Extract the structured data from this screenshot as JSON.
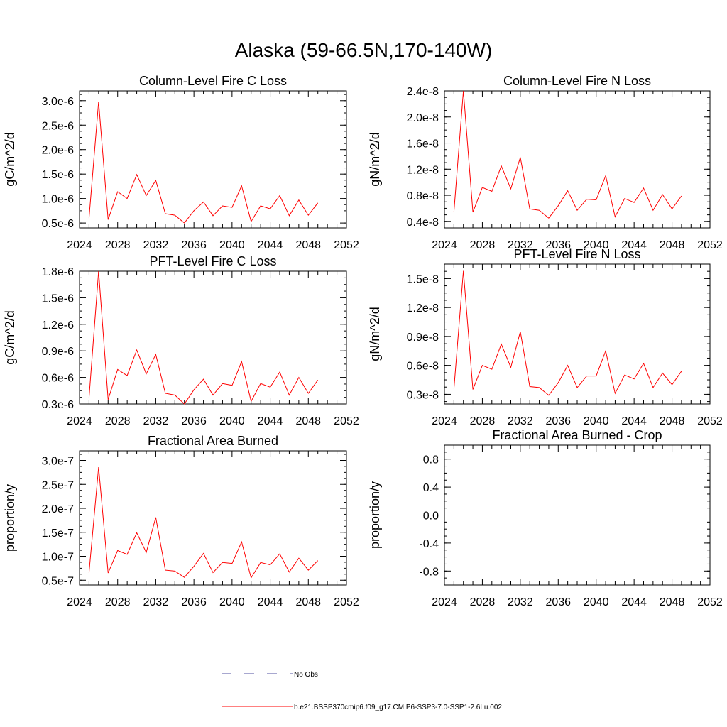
{
  "title": "Alaska (59-66.5N,170-140W)",
  "colors": {
    "series": "#ff0000",
    "obs": "#5050a0",
    "axis": "#000000"
  },
  "legend": {
    "obs_label": "No Obs",
    "model_label": "b.e21.BSSP370cmip6.f09_g17.CMIP6-SSP3-7.0-SSP1-2.6Lu.002"
  },
  "chart_data": [
    {
      "type": "line",
      "title": "Column-Level Fire C Loss",
      "ylabel": "gC/m^2/d",
      "xlim": [
        2024,
        2052
      ],
      "xticks": [
        "2024",
        "2028",
        "2032",
        "2036",
        "2040",
        "2044",
        "2048",
        "2052"
      ],
      "ylim": [
        4e-07,
        3.2e-06
      ],
      "yticks": [
        "0.5e-6",
        "1.0e-6",
        "1.5e-6",
        "2.0e-6",
        "2.5e-6",
        "3.0e-6"
      ],
      "ytick_values": [
        5e-07,
        1e-06,
        1.5e-06,
        2e-06,
        2.5e-06,
        3e-06
      ],
      "x": [
        2025,
        2026,
        2027,
        2028,
        2029,
        2030,
        2031,
        2032,
        2033,
        2034,
        2035,
        2036,
        2037,
        2038,
        2039,
        2040,
        2041,
        2042,
        2043,
        2044,
        2045,
        2046,
        2047,
        2048,
        2049
      ],
      "series": [
        {
          "values": [
            6e-07,
            2.98e-06,
            5.7e-07,
            1.14e-06,
            1e-06,
            1.49e-06,
            1.06e-06,
            1.37e-06,
            6.9e-07,
            6.6e-07,
            5e-07,
            7.5e-07,
            9.3e-07,
            6.5e-07,
            8.5e-07,
            8.2e-07,
            1.26e-06,
            5.3e-07,
            8.5e-07,
            7.9e-07,
            1.06e-06,
            6.5e-07,
            9.7e-07,
            6.6e-07,
            9.1e-07
          ]
        }
      ]
    },
    {
      "type": "line",
      "title": "Column-Level Fire N Loss",
      "ylabel": "gN/m^2/d",
      "xlim": [
        2024,
        2052
      ],
      "xticks": [
        "2024",
        "2028",
        "2032",
        "2036",
        "2040",
        "2044",
        "2048",
        "2052"
      ],
      "ylim": [
        3e-09,
        2.4e-08
      ],
      "yticks": [
        "0.4e-8",
        "0.8e-8",
        "1.2e-8",
        "1.6e-8",
        "2.0e-8",
        "2.4e-8"
      ],
      "ytick_values": [
        4e-09,
        8e-09,
        1.2e-08,
        1.6e-08,
        2e-08,
        2.4e-08
      ],
      "x": [
        2025,
        2026,
        2027,
        2028,
        2029,
        2030,
        2031,
        2032,
        2033,
        2034,
        2035,
        2036,
        2037,
        2038,
        2039,
        2040,
        2041,
        2042,
        2043,
        2044,
        2045,
        2046,
        2047,
        2048,
        2049
      ],
      "series": [
        {
          "values": [
            5.5e-09,
            2.4e-08,
            5.4e-09,
            9.2e-09,
            8.6e-09,
            1.25e-08,
            9e-09,
            1.38e-08,
            5.9e-09,
            5.7e-09,
            4.5e-09,
            6.4e-09,
            8.7e-09,
            5.7e-09,
            7.4e-09,
            7.3e-09,
            1.1e-08,
            4.7e-09,
            7.5e-09,
            6.9e-09,
            9.1e-09,
            5.7e-09,
            8.1e-09,
            5.9e-09,
            7.9e-09
          ]
        }
      ]
    },
    {
      "type": "line",
      "title": "PFT-Level Fire C Loss",
      "ylabel": "gC/m^2/d",
      "xlim": [
        2024,
        2052
      ],
      "xticks": [
        "2024",
        "2028",
        "2032",
        "2036",
        "2040",
        "2044",
        "2048",
        "2052"
      ],
      "ylim": [
        3e-07,
        1.8e-06
      ],
      "yticks": [
        "0.3e-6",
        "0.6e-6",
        "0.9e-6",
        "1.2e-6",
        "1.5e-6",
        "1.8e-6"
      ],
      "ytick_values": [
        3e-07,
        6e-07,
        9e-07,
        1.2e-06,
        1.5e-06,
        1.8e-06
      ],
      "x": [
        2025,
        2026,
        2027,
        2028,
        2029,
        2030,
        2031,
        2032,
        2033,
        2034,
        2035,
        2036,
        2037,
        2038,
        2039,
        2040,
        2041,
        2042,
        2043,
        2044,
        2045,
        2046,
        2047,
        2048,
        2049
      ],
      "series": [
        {
          "values": [
            3.7e-07,
            1.8e-06,
            3.5e-07,
            6.9e-07,
            6.2e-07,
            9.1e-07,
            6.4e-07,
            8.6e-07,
            4.2e-07,
            4e-07,
            3e-07,
            4.6e-07,
            5.8e-07,
            4e-07,
            5.3e-07,
            5.1e-07,
            7.8e-07,
            3.3e-07,
            5.3e-07,
            4.9e-07,
            6.6e-07,
            4e-07,
            6e-07,
            4.2e-07,
            5.7e-07
          ]
        }
      ]
    },
    {
      "type": "line",
      "title": "PFT-Level Fire N Loss",
      "ylabel": "gN/m^2/d",
      "xlim": [
        2024,
        2052
      ],
      "xticks": [
        "2024",
        "2028",
        "2032",
        "2036",
        "2040",
        "2044",
        "2048",
        "2052"
      ],
      "ylim": [
        2e-09,
        1.65e-08
      ],
      "yticks": [
        "0.3e-8",
        "0.6e-8",
        "0.9e-8",
        "1.2e-8",
        "1.5e-8"
      ],
      "ytick_values": [
        3e-09,
        6e-09,
        9e-09,
        1.2e-08,
        1.5e-08
      ],
      "x": [
        2025,
        2026,
        2027,
        2028,
        2029,
        2030,
        2031,
        2032,
        2033,
        2034,
        2035,
        2036,
        2037,
        2038,
        2039,
        2040,
        2041,
        2042,
        2043,
        2044,
        2045,
        2046,
        2047,
        2048,
        2049
      ],
      "series": [
        {
          "values": [
            3.6e-09,
            1.58e-08,
            3.5e-09,
            6e-09,
            5.6e-09,
            8.2e-09,
            5.8e-09,
            9.5e-09,
            3.8e-09,
            3.7e-09,
            2.9e-09,
            4.2e-09,
            6e-09,
            3.7e-09,
            4.9e-09,
            4.9e-09,
            7.5e-09,
            3.1e-09,
            5e-09,
            4.6e-09,
            6.2e-09,
            3.7e-09,
            5.2e-09,
            4e-09,
            5.4e-09
          ]
        }
      ]
    },
    {
      "type": "line",
      "title": "Fractional Area Burned",
      "ylabel": "proportion/y",
      "xlim": [
        2024,
        2052
      ],
      "xticks": [
        "2024",
        "2028",
        "2032",
        "2036",
        "2040",
        "2044",
        "2048",
        "2052"
      ],
      "ylim": [
        4e-08,
        3.2e-07
      ],
      "yticks": [
        "0.5e-7",
        "1.0e-7",
        "1.5e-7",
        "2.0e-7",
        "2.5e-7",
        "3.0e-7"
      ],
      "ytick_values": [
        5e-08,
        1e-07,
        1.5e-07,
        2e-07,
        2.5e-07,
        3e-07
      ],
      "x": [
        2025,
        2026,
        2027,
        2028,
        2029,
        2030,
        2031,
        2032,
        2033,
        2034,
        2035,
        2036,
        2037,
        2038,
        2039,
        2040,
        2041,
        2042,
        2043,
        2044,
        2045,
        2046,
        2047,
        2048,
        2049
      ],
      "series": [
        {
          "values": [
            6.6e-08,
            2.86e-07,
            6.5e-08,
            1.12e-07,
            1.04e-07,
            1.49e-07,
            1.08e-07,
            1.81e-07,
            7.1e-08,
            6.9e-08,
            5.6e-08,
            7.9e-08,
            1.06e-07,
            6.6e-08,
            8.7e-08,
            8.5e-08,
            1.3e-07,
            5.5e-08,
            8.7e-08,
            8.2e-08,
            1.05e-07,
            6.7e-08,
            9.6e-08,
            7.1e-08,
            9.1e-08
          ]
        }
      ]
    },
    {
      "type": "line",
      "title": "Fractional Area Burned - Crop",
      "ylabel": "proportion/y",
      "xlim": [
        2024,
        2052
      ],
      "xticks": [
        "2024",
        "2028",
        "2032",
        "2036",
        "2040",
        "2044",
        "2048",
        "2052"
      ],
      "ylim": [
        -1.0,
        1.0
      ],
      "yticks": [
        "-0.8",
        "-0.4",
        "0.0",
        "0.4",
        "0.8"
      ],
      "ytick_values": [
        -0.8,
        -0.4,
        0.0,
        0.4,
        0.8
      ],
      "x": [
        2025,
        2026,
        2027,
        2028,
        2029,
        2030,
        2031,
        2032,
        2033,
        2034,
        2035,
        2036,
        2037,
        2038,
        2039,
        2040,
        2041,
        2042,
        2043,
        2044,
        2045,
        2046,
        2047,
        2048,
        2049
      ],
      "series": [
        {
          "values": [
            0,
            0,
            0,
            0,
            0,
            0,
            0,
            0,
            0,
            0,
            0,
            0,
            0,
            0,
            0,
            0,
            0,
            0,
            0,
            0,
            0,
            0,
            0,
            0,
            0
          ]
        }
      ]
    }
  ]
}
